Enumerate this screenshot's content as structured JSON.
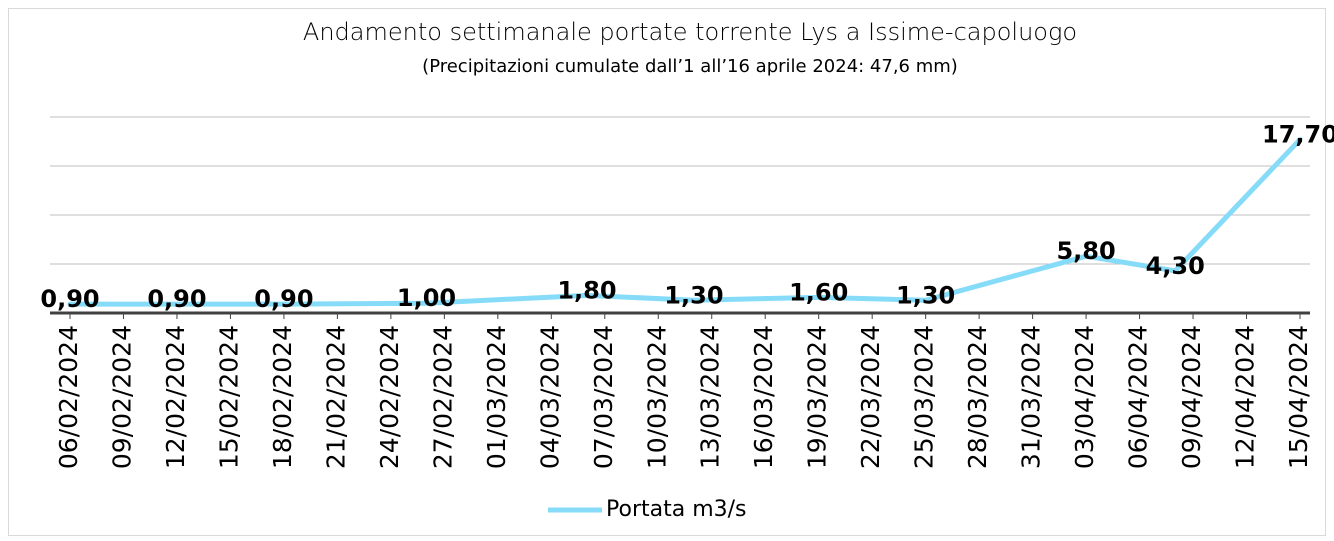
{
  "chart_data": {
    "type": "line",
    "title": "Andamento settimanale portate torrente Lys a Issime-capoluogo",
    "subtitle": "(Precipitazioni cumulate dall’1 all’16 aprile 2024: 47,6 mm)",
    "series": [
      {
        "name": "Portata m3/s",
        "color": "#86dcf8",
        "x": [
          "06/02/2024",
          "12/02/2024",
          "18/02/2024",
          "26/02/2024",
          "06/03/2024",
          "12/03/2024",
          "19/03/2024",
          "25/03/2024",
          "03/04/2024",
          "08/04/2024",
          "15/04/2024"
        ],
        "values": [
          0.9,
          0.9,
          0.9,
          1.0,
          1.8,
          1.3,
          1.6,
          1.3,
          5.8,
          4.3,
          17.7
        ],
        "value_labels": [
          "0,90",
          "0,90",
          "0,90",
          "1,00",
          "1,80",
          "1,30",
          "1,60",
          "1,30",
          "5,80",
          "4,30",
          "17,70"
        ]
      }
    ],
    "xlim": [
      "06/02/2024",
      "15/04/2024"
    ],
    "xticks": [
      "06/02/2024",
      "09/02/2024",
      "12/02/2024",
      "15/02/2024",
      "18/02/2024",
      "21/02/2024",
      "24/02/2024",
      "27/02/2024",
      "01/03/2024",
      "04/03/2024",
      "07/03/2024",
      "10/03/2024",
      "13/03/2024",
      "16/03/2024",
      "19/03/2024",
      "22/03/2024",
      "25/03/2024",
      "28/03/2024",
      "31/03/2024",
      "03/04/2024",
      "06/04/2024",
      "09/04/2024",
      "12/04/2024",
      "15/04/2024"
    ],
    "ylim": [
      0,
      20
    ],
    "yticks": [
      0,
      5,
      10,
      15,
      20
    ],
    "grid": true,
    "legend": "bottom"
  }
}
